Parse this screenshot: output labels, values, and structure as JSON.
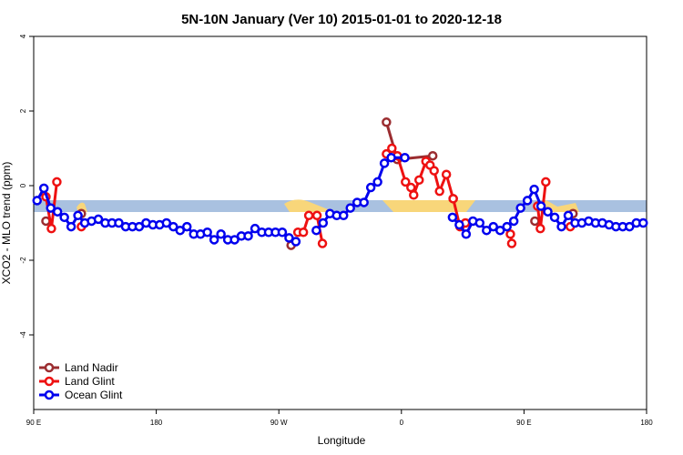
{
  "chart_data": {
    "type": "line",
    "title": "5N-10N January (Ver 10)   2015-01-01 to 2020-12-18",
    "x_label": "Longitude",
    "y_label": "XCO2 - MLO trend (ppm)",
    "xlim": [
      90,
      540
    ],
    "ylim": [
      -6,
      4
    ],
    "xticks": [
      {
        "value": 90,
        "label": "90 E"
      },
      {
        "value": 180,
        "label": "180"
      },
      {
        "value": 270,
        "label": "90 W"
      },
      {
        "value": 360,
        "label": "0"
      },
      {
        "value": 450,
        "label": "90 E"
      },
      {
        "value": 540,
        "label": "180"
      }
    ],
    "yticks": [
      -4,
      -2,
      0,
      2,
      4
    ],
    "legend": "bottom-left",
    "series": [
      {
        "name": "Land Nadir",
        "color": "#9b2d30",
        "x": [
          99,
          101,
          125,
          127,
          279,
          281,
          349,
          357,
          383,
          385,
          398,
          400,
          458,
          460,
          486
        ],
        "values": [
          -0.95,
          null,
          -0.75,
          null,
          -1.6,
          null,
          1.7,
          0.7,
          0.8,
          null,
          -0.35,
          null,
          -0.95,
          null,
          -0.75
        ]
      },
      {
        "name": "Land Glint",
        "color": "#ee1111",
        "x": [
          99,
          103,
          107,
          110,
          125,
          128,
          284,
          288,
          292,
          298,
          302,
          305,
          349,
          353,
          357,
          363,
          367,
          369,
          373,
          378,
          381,
          384,
          388,
          393,
          398,
          403,
          407,
          410,
          440,
          441,
          444,
          460,
          462,
          466,
          470,
          484
        ],
        "values": [
          -0.3,
          -1.15,
          0.1,
          null,
          -1.1,
          null,
          -1.25,
          -1.25,
          -0.8,
          -0.8,
          -1.55,
          null,
          0.85,
          1.0,
          0.8,
          0.1,
          -0.05,
          -0.25,
          0.15,
          0.65,
          0.55,
          0.4,
          -0.15,
          0.3,
          -0.35,
          -1.1,
          -1.0,
          null,
          -1.3,
          -1.55,
          null,
          -0.55,
          -1.15,
          0.1,
          null,
          -1.1
        ]
      },
      {
        "name": "Ocean Glint",
        "color": "#0000ee",
        "x": [
          92.5,
          97.5,
          102.5,
          107.5,
          112.5,
          117.5,
          122.5,
          127.5,
          132.5,
          137.5,
          142.5,
          147.5,
          152.5,
          157.5,
          162.5,
          167.5,
          172.5,
          177.5,
          182.5,
          187.5,
          192.5,
          197.5,
          202.5,
          207.5,
          212.5,
          217.5,
          222.5,
          227.5,
          232.5,
          237.5,
          242.5,
          247.5,
          252.5,
          257.5,
          262.5,
          267.5,
          272.5,
          277.5,
          282.5,
          287.5,
          297.5,
          302.5,
          307.5,
          312.5,
          317.5,
          322.5,
          327.5,
          332.5,
          337.5,
          342.5,
          347.5,
          352.5,
          362.5,
          367.5,
          397.5,
          402.5,
          407.5,
          412.5,
          417.5,
          422.5,
          427.5,
          432.5,
          437.5,
          442.5,
          447.5,
          452.5,
          457.5,
          462.5,
          467.5,
          472.5,
          477.5,
          482.5,
          487.5,
          492.5,
          497.5,
          502.5,
          507.5,
          512.5,
          517.5,
          522.5,
          527.5,
          532.5,
          537.5
        ],
        "values": [
          -0.4,
          -0.07,
          -0.6,
          -0.7,
          -0.85,
          -1.1,
          -0.8,
          -1.0,
          -0.95,
          -0.9,
          -1.0,
          -1.0,
          -1.0,
          -1.1,
          -1.1,
          -1.1,
          -1.0,
          -1.05,
          -1.05,
          -1.0,
          -1.1,
          -1.2,
          -1.1,
          -1.3,
          -1.3,
          -1.25,
          -1.45,
          -1.3,
          -1.45,
          -1.45,
          -1.35,
          -1.35,
          -1.15,
          -1.25,
          -1.25,
          -1.25,
          -1.25,
          -1.4,
          -1.5,
          null,
          -1.2,
          -1.0,
          -0.75,
          -0.8,
          -0.8,
          -0.6,
          -0.45,
          -0.45,
          -0.05,
          0.1,
          0.6,
          0.75,
          0.75,
          null,
          -0.85,
          -1.05,
          -1.3,
          -0.95,
          -1.0,
          -1.2,
          -1.1,
          -1.2,
          -1.1,
          -0.95,
          -0.6,
          -0.4,
          -0.1,
          -0.55,
          -0.7,
          -0.85,
          -1.1,
          -0.8,
          -1.0,
          -1.0,
          -0.95,
          -1.0,
          -1.0,
          -1.05,
          -1.1,
          -1.1,
          -1.1,
          -1.0,
          -1.0
        ]
      }
    ]
  }
}
